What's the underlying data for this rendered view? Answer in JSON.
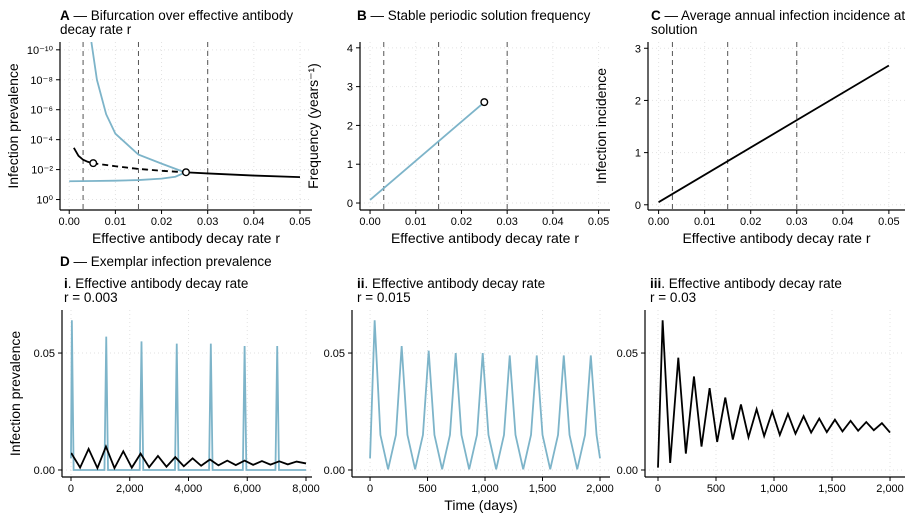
{
  "section_title": {
    "panel": "D",
    "title": "— Exemplar infection prevalence"
  },
  "chart_data": [
    {
      "type": "line",
      "panel": "A",
      "title": "— Bifurcation over effective antibody decay rate r",
      "xlabel": "Effective antibody decay rate r",
      "ylabel": "Infection prevalence",
      "ylog": true,
      "grid": true,
      "xlim": [
        -0.002,
        0.0526
      ],
      "ylim": [
        5,
        3e-11
      ],
      "xticks": [
        {
          "value": 0,
          "label": "0.00"
        },
        0.01,
        0.02,
        0.03,
        0.04,
        0.05
      ],
      "yticks": [
        {
          "value": 1,
          "label": "10⁰"
        },
        {
          "value": 0.01,
          "label": "10⁻²"
        },
        {
          "value": 0.0001,
          "label": "10⁻⁴"
        },
        {
          "value": 1e-06,
          "label": "10⁻⁶"
        },
        {
          "value": 1e-08,
          "label": "10⁻⁸"
        },
        {
          "value": 1e-10,
          "label": "10⁻¹⁰"
        }
      ],
      "vlines": [
        0.003,
        0.015,
        0.03
      ],
      "series": [
        {
          "style": "line",
          "color": "#7db4c9",
          "x": [
            0,
            0.005,
            0.01,
            0.015,
            0.02,
            0.023,
            0.025
          ],
          "values": [
            0.06,
            0.058,
            0.055,
            0.05,
            0.04,
            0.03,
            0.016
          ]
        },
        {
          "style": "line",
          "color": "#7db4c9",
          "x": [
            0.0048,
            0.006,
            0.008,
            0.01,
            0.015,
            0.02,
            0.025
          ],
          "values": [
            3e-11,
            1e-08,
            2e-06,
            4e-05,
            0.001,
            0.004,
            0.015
          ]
        },
        {
          "style": "line",
          "color": "#000000",
          "x": [
            0.001,
            0.002,
            0.003,
            0.004,
            0.005
          ],
          "values": [
            0.00035,
            0.0012,
            0.0022,
            0.003,
            0.0037
          ]
        },
        {
          "style": "dashed",
          "color": "#000000",
          "x": [
            0.005,
            0.01,
            0.015,
            0.02,
            0.025
          ],
          "values": [
            0.0037,
            0.006,
            0.009,
            0.012,
            0.015
          ]
        },
        {
          "style": "line",
          "color": "#000000",
          "x": [
            0.025,
            0.03,
            0.04,
            0.05
          ],
          "values": [
            0.015,
            0.018,
            0.025,
            0.032
          ]
        },
        {
          "style": "markers",
          "color": "#000000",
          "x": [
            0.0052,
            0.0253
          ],
          "values": [
            0.0037,
            0.015
          ]
        }
      ]
    },
    {
      "type": "line",
      "panel": "B",
      "title": "— Stable periodic solution frequency",
      "xlabel": "Effective antibody decay rate r",
      "ylabel": "Frequency (years⁻¹)",
      "grid": true,
      "xlim": [
        -0.0022,
        0.0525
      ],
      "ylim": [
        -0.18,
        4.15
      ],
      "xticks": [
        {
          "value": 0,
          "label": "0.00"
        },
        0.01,
        0.02,
        0.03,
        0.04,
        0.05
      ],
      "yticks": [
        0,
        1,
        2,
        3,
        4
      ],
      "vlines": [
        0.003,
        0.015,
        0.03
      ],
      "series": [
        {
          "style": "line",
          "color": "#7db4c9",
          "x": [
            0,
            0.025
          ],
          "values": [
            0.08,
            2.6
          ]
        },
        {
          "style": "markers",
          "color": "#000000",
          "x": [
            0.025
          ],
          "values": [
            2.6
          ]
        }
      ]
    },
    {
      "type": "line",
      "panel": "C",
      "title": "— Average annual infection incidence at solution",
      "xlabel": "Effective antibody decay rate r",
      "ylabel": "Infection incidence",
      "grid": true,
      "xlim": [
        -0.0023,
        0.0535
      ],
      "ylim": [
        -0.1,
        3.12
      ],
      "xticks": [
        {
          "value": 0,
          "label": "0.00"
        },
        0.01,
        0.02,
        0.03,
        0.04,
        0.05
      ],
      "yticks": [
        0,
        1,
        2,
        3
      ],
      "vlines": [
        0.003,
        0.015,
        0.03
      ],
      "series": [
        {
          "style": "line",
          "color": "#000000",
          "x": [
            0,
            0.05
          ],
          "values": [
            0.05,
            2.67
          ]
        }
      ]
    },
    {
      "type": "line",
      "panel": "i",
      "title": ". Effective antibody decay rate",
      "subtitle": "r = 0.003",
      "ylabel": "Infection prevalence",
      "grid": true,
      "xlim": [
        -306,
        8204
      ],
      "ylim": [
        -0.003,
        0.0684
      ],
      "xticks": [
        0,
        {
          "value": 2000,
          "label": "2,000"
        },
        {
          "value": 4000,
          "label": "4,000"
        },
        {
          "value": 6000,
          "label": "6,000"
        },
        {
          "value": 8000,
          "label": "8,000"
        }
      ],
      "yticks": [
        {
          "value": 0,
          "label": "0.00"
        },
        0.05
      ],
      "series": [
        {
          "style": "line",
          "color": "#7db4c9",
          "x": [
            0,
            30,
            90,
            1140,
            1200,
            1260,
            2340,
            2400,
            2460,
            3540,
            3600,
            3660,
            4700,
            4760,
            4820,
            5850,
            5910,
            5970,
            6960,
            7020,
            7080,
            8000
          ],
          "values": [
            0.005,
            0.064,
            0,
            0,
            0.057,
            0,
            0,
            0.055,
            0,
            0,
            0.054,
            0,
            0,
            0.054,
            0,
            0,
            0.053,
            0,
            0,
            0.053,
            0,
            0
          ]
        },
        {
          "style": "line",
          "color": "#000000",
          "x": [
            0,
            20,
            310,
            600,
            900,
            1190,
            1480,
            1780,
            2070,
            2370,
            2660,
            2960,
            3250,
            3550,
            3840,
            4140,
            4430,
            4730,
            5020,
            5320,
            5610,
            5910,
            6200,
            6500,
            6790,
            7090,
            7380,
            7680,
            8000
          ],
          "values": [
            0.007,
            0.007,
            0.001,
            0.009,
            0.0008,
            0.01,
            0.0008,
            0.008,
            0.001,
            0.007,
            0.0012,
            0.006,
            0.0014,
            0.0055,
            0.0016,
            0.005,
            0.0018,
            0.0045,
            0.002,
            0.004,
            0.0021,
            0.004,
            0.0022,
            0.0038,
            0.0023,
            0.0037,
            0.0024,
            0.0036,
            0.0028
          ]
        }
      ]
    },
    {
      "type": "line",
      "panel": "ii",
      "title": ". Effective antibody decay rate",
      "subtitle": "r = 0.015",
      "xlabel": "Time (days)",
      "grid": true,
      "xlim": [
        -157,
        2087
      ],
      "ylim": [
        -0.003,
        0.0684
      ],
      "xticks": [
        0,
        500,
        {
          "value": 1000,
          "label": "1,000"
        },
        {
          "value": 1500,
          "label": "1,500"
        },
        {
          "value": 2000,
          "label": "2,000"
        }
      ],
      "yticks": [
        {
          "value": 0,
          "label": "0.00"
        },
        0.05
      ],
      "series": [
        {
          "style": "line",
          "color": "#7db4c9",
          "x": [
            0,
            40,
            90,
            157,
            225,
            275,
            325,
            392,
            460,
            510,
            560,
            627,
            695,
            745,
            795,
            862,
            930,
            980,
            1030,
            1097,
            1165,
            1215,
            1265,
            1332,
            1400,
            1450,
            1500,
            1567,
            1635,
            1685,
            1735,
            1802,
            1870,
            1920,
            1970,
            2000
          ],
          "values": [
            0.005,
            0.064,
            0.015,
            0.0003,
            0.015,
            0.053,
            0.015,
            0.0003,
            0.015,
            0.051,
            0.015,
            0.0003,
            0.015,
            0.05,
            0.015,
            0.0003,
            0.015,
            0.05,
            0.015,
            0.0003,
            0.015,
            0.049,
            0.015,
            0.0003,
            0.015,
            0.049,
            0.015,
            0.0003,
            0.015,
            0.049,
            0.015,
            0.0003,
            0.015,
            0.049,
            0.015,
            0.005
          ]
        }
      ]
    },
    {
      "type": "line",
      "panel": "iii",
      "title": ". Effective antibody decay rate",
      "subtitle": "r = 0.03",
      "grid": true,
      "xlim": [
        -112,
        2129
      ],
      "ylim": [
        -0.003,
        0.0684
      ],
      "xticks": [
        0,
        500,
        {
          "value": 1000,
          "label": "1,000"
        },
        {
          "value": 1500,
          "label": "1,500"
        },
        {
          "value": 2000,
          "label": "2,000"
        }
      ],
      "yticks": [
        {
          "value": 0,
          "label": "0.00"
        },
        0.05
      ],
      "series": [
        {
          "style": "line",
          "color": "#000000",
          "x": [
            0,
            40,
            105,
            175,
            240,
            310,
            375,
            445,
            510,
            580,
            645,
            715,
            780,
            850,
            915,
            985,
            1050,
            1120,
            1185,
            1255,
            1320,
            1390,
            1455,
            1525,
            1590,
            1660,
            1725,
            1795,
            1860,
            1930,
            2000
          ],
          "values": [
            0.001,
            0.064,
            0.003,
            0.048,
            0.007,
            0.04,
            0.01,
            0.035,
            0.012,
            0.031,
            0.013,
            0.028,
            0.014,
            0.026,
            0.0145,
            0.025,
            0.015,
            0.024,
            0.0155,
            0.023,
            0.016,
            0.022,
            0.0162,
            0.0215,
            0.0165,
            0.021,
            0.0168,
            0.0205,
            0.017,
            0.02,
            0.016
          ]
        }
      ]
    }
  ]
}
